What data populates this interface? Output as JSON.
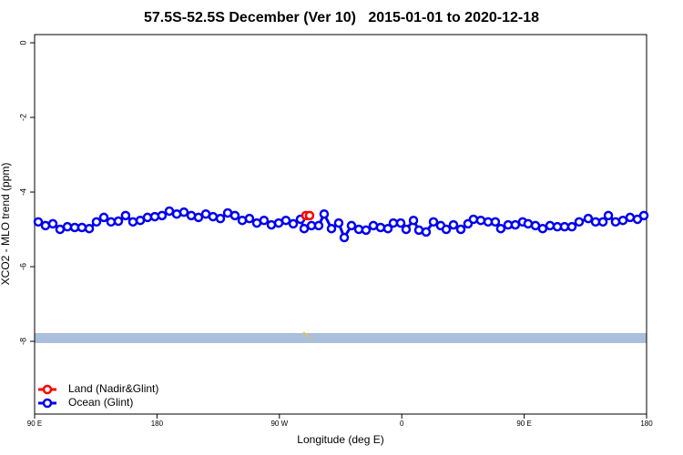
{
  "chart_data": {
    "type": "line",
    "title": "57.5S-52.5S December (Ver 10)   2015-01-01 to 2020-12-18",
    "x_label": "Longitude (deg E)",
    "y_label": "XCO2 - MLO trend (ppm)",
    "xlim": [
      90,
      540
    ],
    "ylim": [
      -9.95,
      0.22
    ],
    "xticks": [
      {
        "value": 90,
        "label": "90 E"
      },
      {
        "value": 180,
        "label": "180"
      },
      {
        "value": 270,
        "label": "90 W"
      },
      {
        "value": 360,
        "label": "0"
      },
      {
        "value": 450,
        "label": "90 E"
      },
      {
        "value": 540,
        "label": "180"
      }
    ],
    "yticks": [
      0,
      -2,
      -4,
      -6,
      -8
    ],
    "legend": "bottom-left",
    "series": [
      {
        "name": "Land (Nadir&Glint)",
        "color": "#ff0000",
        "x": [
          289.5,
          292.2
        ],
        "values": [
          -4.63,
          -4.63
        ]
      },
      {
        "name": "Ocean (Glint)",
        "color": "#0000ee",
        "x": [
          92.7,
          98.0,
          103.4,
          108.7,
          114.1,
          119.5,
          124.8,
          130.2,
          135.5,
          140.9,
          146.2,
          151.6,
          156.9,
          162.3,
          167.7,
          173.0,
          178.4,
          183.7,
          189.1,
          194.5,
          199.8,
          205.2,
          210.5,
          215.9,
          221.2,
          226.6,
          232.0,
          237.3,
          242.7,
          248.0,
          253.4,
          258.7,
          264.1,
          269.5,
          274.8,
          280.2,
          285.5,
          288.2,
          293.6,
          298.9,
          302.9,
          308.3,
          313.6,
          317.7,
          323.0,
          328.4,
          333.7,
          339.1,
          344.4,
          349.8,
          353.8,
          359.2,
          363.2,
          368.6,
          372.6,
          377.9,
          383.3,
          388.6,
          392.7,
          398.0,
          403.4,
          408.7,
          412.7,
          418.1,
          423.5,
          428.8,
          432.8,
          438.2,
          443.5,
          448.9,
          452.9,
          458.3,
          463.6,
          469.0,
          474.4,
          479.7,
          485.1,
          490.4,
          497.1,
          502.5,
          507.9,
          511.9,
          517.2,
          522.6,
          527.9,
          533.3,
          538.0
        ],
        "values": [
          -4.8,
          -4.9,
          -4.85,
          -5.0,
          -4.93,
          -4.95,
          -4.95,
          -4.98,
          -4.8,
          -4.68,
          -4.8,
          -4.78,
          -4.63,
          -4.8,
          -4.76,
          -4.68,
          -4.66,
          -4.63,
          -4.51,
          -4.59,
          -4.54,
          -4.63,
          -4.68,
          -4.59,
          -4.66,
          -4.71,
          -4.56,
          -4.63,
          -4.76,
          -4.71,
          -4.83,
          -4.76,
          -4.88,
          -4.83,
          -4.76,
          -4.85,
          -4.73,
          -4.98,
          -4.9,
          -4.9,
          -4.59,
          -4.98,
          -4.83,
          -5.22,
          -4.9,
          -5.0,
          -5.02,
          -4.9,
          -4.95,
          -4.98,
          -4.83,
          -4.83,
          -5.0,
          -4.76,
          -5.02,
          -5.07,
          -4.8,
          -4.9,
          -5.0,
          -4.88,
          -5.0,
          -4.85,
          -4.73,
          -4.76,
          -4.8,
          -4.8,
          -4.98,
          -4.88,
          -4.88,
          -4.8,
          -4.85,
          -4.9,
          -4.98,
          -4.9,
          -4.93,
          -4.93,
          -4.93,
          -4.8,
          -4.71,
          -4.8,
          -4.8,
          -4.63,
          -4.8,
          -4.76,
          -4.68,
          -4.73,
          -4.63
        ]
      }
    ]
  }
}
